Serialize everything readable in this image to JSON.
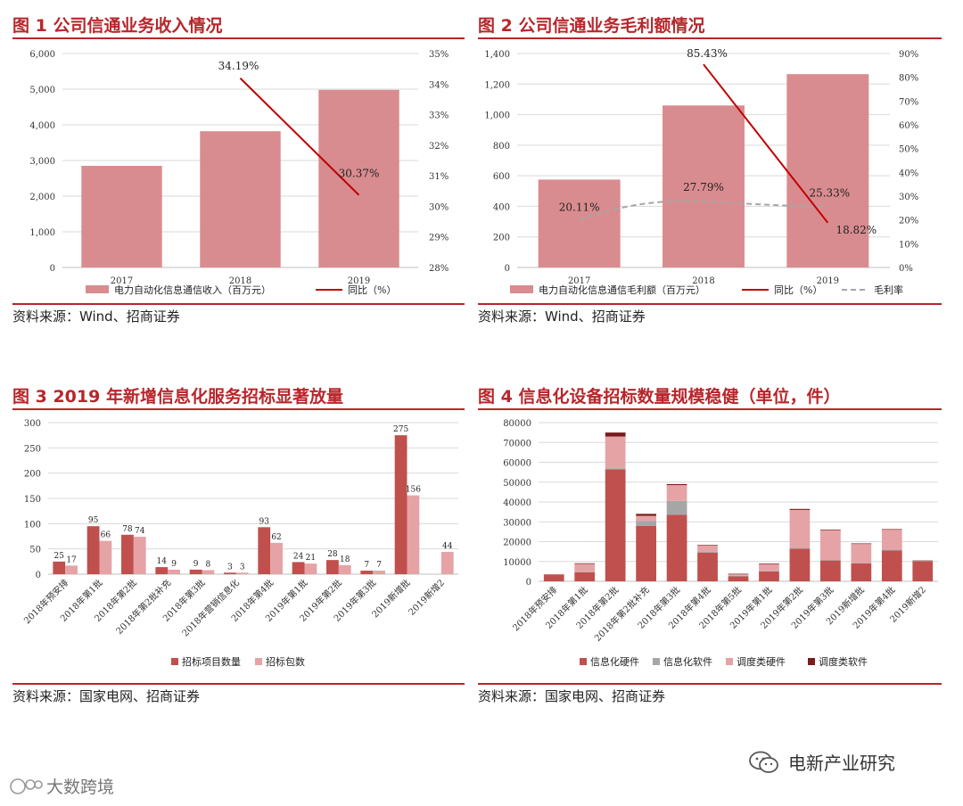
{
  "colors": {
    "title": "#b8262b",
    "bar_pink": "#d98c8f",
    "bar_red": "#c0504d",
    "bar_light": "#e5a3a6",
    "bar_gray": "#a6a6a6",
    "bar_dark": "#7a1c1c",
    "line_red": "#c00000",
    "dash_gray": "#a6a6a6"
  },
  "panels": {
    "fig1": {
      "title": "图 1 公司信通业务收入情况",
      "source": "资料来源：Wind、招商证券"
    },
    "fig2": {
      "title": "图 2 公司信通业务毛利额情况",
      "source": "资料来源：Wind、招商证券"
    },
    "fig3": {
      "title": "图 3 2019 年新增信息化服务招标显著放量",
      "source": "资料来源：国家电网、招商证券"
    },
    "fig4": {
      "title": "图 4 信息化设备招标数量规模稳健（单位，件）",
      "source": "资料来源：国家电网、招商证券"
    }
  },
  "footer": {
    "brand": "电新产业研究",
    "watermark": "大数跨境"
  },
  "chart_data": [
    {
      "id": "fig1",
      "type": "bar",
      "categories": [
        "2017",
        "2018",
        "2019"
      ],
      "series": [
        {
          "name": "电力自动化信息通信收入（百万元）",
          "axis": "left",
          "values": [
            2850,
            3820,
            4980
          ]
        },
        {
          "name": "同比（%）",
          "axis": "right",
          "type": "line",
          "values": [
            null,
            34.19,
            30.37
          ]
        }
      ],
      "data_labels": [
        "34.19%",
        "30.37%"
      ],
      "y_left": {
        "min": 0,
        "max": 6000,
        "step": 1000,
        "ticks": [
          "0",
          "1,000",
          "2,000",
          "3,000",
          "4,000",
          "5,000",
          "6,000"
        ]
      },
      "y_right": {
        "min": 28,
        "max": 35,
        "step": 1,
        "ticks": [
          "28%",
          "29%",
          "30%",
          "31%",
          "32%",
          "33%",
          "34%",
          "35%"
        ]
      },
      "legend_position": "bottom"
    },
    {
      "id": "fig2",
      "type": "bar",
      "categories": [
        "2017",
        "2018",
        "2019"
      ],
      "series": [
        {
          "name": "电力自动化信息通信毛利额（百万元）",
          "axis": "left",
          "values": [
            575,
            1060,
            1265
          ]
        },
        {
          "name": "同比（%）",
          "axis": "right",
          "type": "line",
          "values": [
            null,
            85.43,
            18.82
          ]
        },
        {
          "name": "毛利率",
          "axis": "right",
          "type": "dashed-line",
          "values": [
            20.11,
            27.79,
            25.33
          ]
        }
      ],
      "data_labels": [
        "85.43%",
        "18.82%",
        "20.11%",
        "27.79%",
        "25.33%"
      ],
      "y_left": {
        "min": 0,
        "max": 1400,
        "step": 200,
        "ticks": [
          "0",
          "200",
          "400",
          "600",
          "800",
          "1,000",
          "1,200",
          "1,400"
        ]
      },
      "y_right": {
        "min": 0,
        "max": 90,
        "step": 10,
        "ticks": [
          "0%",
          "10%",
          "20%",
          "30%",
          "40%",
          "50%",
          "60%",
          "70%",
          "80%",
          "90%"
        ]
      },
      "legend_position": "bottom"
    },
    {
      "id": "fig3",
      "type": "bar",
      "categories": [
        "2018年预安排",
        "2018年第1批",
        "2018年第2批",
        "2018年第2批补充",
        "2018年第3批",
        "2018年营销信息化",
        "2018年第4批",
        "2019年第1批",
        "2019年第2批",
        "2019年第3批",
        "2019新增批",
        "2019新增2"
      ],
      "series": [
        {
          "name": "招标项目数量",
          "values": [
            25,
            95,
            78,
            14,
            9,
            3,
            93,
            24,
            28,
            7,
            275,
            null
          ]
        },
        {
          "name": "招标包数",
          "values": [
            17,
            66,
            74,
            9,
            8,
            3,
            62,
            21,
            18,
            7,
            156,
            44
          ]
        }
      ],
      "y": {
        "min": 0,
        "max": 300,
        "step": 50,
        "ticks": [
          "0",
          "50",
          "100",
          "150",
          "200",
          "250",
          "300"
        ]
      },
      "legend_position": "bottom"
    },
    {
      "id": "fig4",
      "type": "bar",
      "stacked": true,
      "categories": [
        "2018年预安排",
        "2018年第1批",
        "2018年第2批",
        "2018年第2批补充",
        "2018年第3批",
        "2018年第4批",
        "2018年第5批",
        "2019年第1批",
        "2019年第2批",
        "2019年第3批",
        "2019新增批",
        "2019年第4批",
        "2019新增2"
      ],
      "series": [
        {
          "name": "信息化硬件",
          "values": [
            3500,
            4500,
            56500,
            28000,
            33500,
            14500,
            2500,
            5000,
            16500,
            10500,
            9000,
            15500,
            10000
          ]
        },
        {
          "name": "信息化软件",
          "values": [
            0,
            300,
            500,
            2500,
            7000,
            500,
            300,
            300,
            500,
            300,
            300,
            500,
            200
          ]
        },
        {
          "name": "调度类硬件",
          "values": [
            0,
            4000,
            16000,
            2500,
            8000,
            3000,
            700,
            3400,
            19000,
            15000,
            9500,
            10000,
            0
          ]
        },
        {
          "name": "调度类软件",
          "values": [
            0,
            300,
            2000,
            1000,
            500,
            300,
            300,
            300,
            500,
            300,
            300,
            300,
            300
          ]
        }
      ],
      "y": {
        "min": 0,
        "max": 80000,
        "step": 10000,
        "ticks": [
          "0",
          "10000",
          "20000",
          "30000",
          "40000",
          "50000",
          "60000",
          "70000",
          "80000"
        ]
      },
      "legend_position": "bottom"
    }
  ]
}
